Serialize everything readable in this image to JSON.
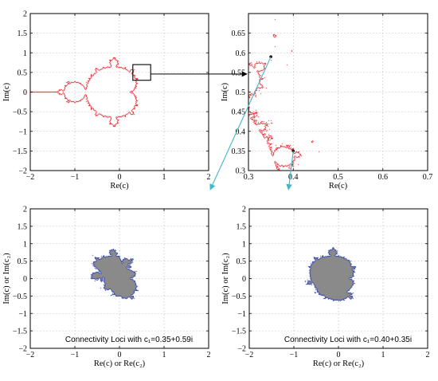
{
  "chart_data": [
    {
      "id": "tl",
      "type": "scatter",
      "xlabel": "Re(c)",
      "ylabel": "Im(c)",
      "xlim": [
        -2,
        2
      ],
      "ylim": [
        -2,
        2
      ],
      "xticks": [
        -2,
        -1,
        0,
        1,
        2
      ],
      "yticks": [
        -2,
        -1.5,
        -1,
        -0.5,
        0,
        0.5,
        1,
        1.5,
        2
      ],
      "grid": true,
      "fractal": "mandelbrot-boundary",
      "color": "#e0141e",
      "zoom_box": {
        "x": [
          0.3,
          0.7
        ],
        "y": [
          0.3,
          0.7
        ]
      }
    },
    {
      "id": "tr",
      "type": "scatter",
      "xlabel": "Re(c)",
      "ylabel": "Im(c)",
      "xlim": [
        0.3,
        0.7
      ],
      "ylim": [
        0.3,
        0.7
      ],
      "xticks": [
        0.3,
        0.4,
        0.5,
        0.6,
        0.7
      ],
      "yticks": [
        0.3,
        0.35,
        0.4,
        0.45,
        0.5,
        0.55,
        0.6,
        0.65
      ],
      "grid": true,
      "fractal": "mandelbrot-boundary",
      "color": "#e0141e",
      "marked_points": [
        {
          "x": 0.35,
          "y": 0.59
        },
        {
          "x": 0.4,
          "y": 0.35
        }
      ]
    },
    {
      "id": "bl",
      "type": "scatter",
      "xlabel": "Re(c) or Re(c₂)",
      "ylabel": "Im(c) or Im(c₂)",
      "xlim": [
        -2,
        2
      ],
      "ylim": [
        -2,
        2
      ],
      "xticks": [
        -2,
        -1,
        0,
        1,
        2
      ],
      "yticks": [
        -2,
        -1.5,
        -1,
        -0.5,
        0,
        0.5,
        1,
        1.5,
        2
      ],
      "grid": true,
      "fractal": "connectivity-locus",
      "c1": {
        "re": 0.35,
        "im": 0.59
      },
      "fill_color": "#8a8a8a",
      "edge_color": "#2236a8",
      "annotation": "Connectivity Loci with c₁=0.35+0.59i"
    },
    {
      "id": "br",
      "type": "scatter",
      "xlabel": "Re(c) or Re(c₂)",
      "ylabel": "Im(c) or Im(c₂)",
      "xlim": [
        -2,
        2
      ],
      "ylim": [
        -2,
        2
      ],
      "xticks": [
        -2,
        -1,
        0,
        1,
        2
      ],
      "yticks": [
        -2,
        -1.5,
        -1,
        -0.5,
        0,
        0.5,
        1,
        1.5,
        2
      ],
      "grid": true,
      "fractal": "connectivity-locus",
      "c1": {
        "re": 0.4,
        "im": 0.35
      },
      "fill_color": "#8a8a8a",
      "edge_color": "#2236a8",
      "annotation": "Connectivity Loci with c₁=0.40+0.35i"
    }
  ],
  "arrows": [
    {
      "from": "tl-zoom-box",
      "to": "tr-panel",
      "color": "#000000"
    },
    {
      "from": "tr-point-1",
      "to": "bl-panel",
      "color": "#3fb8c8"
    },
    {
      "from": "tr-point-2",
      "to": "br-panel",
      "color": "#3fb8c8"
    }
  ]
}
